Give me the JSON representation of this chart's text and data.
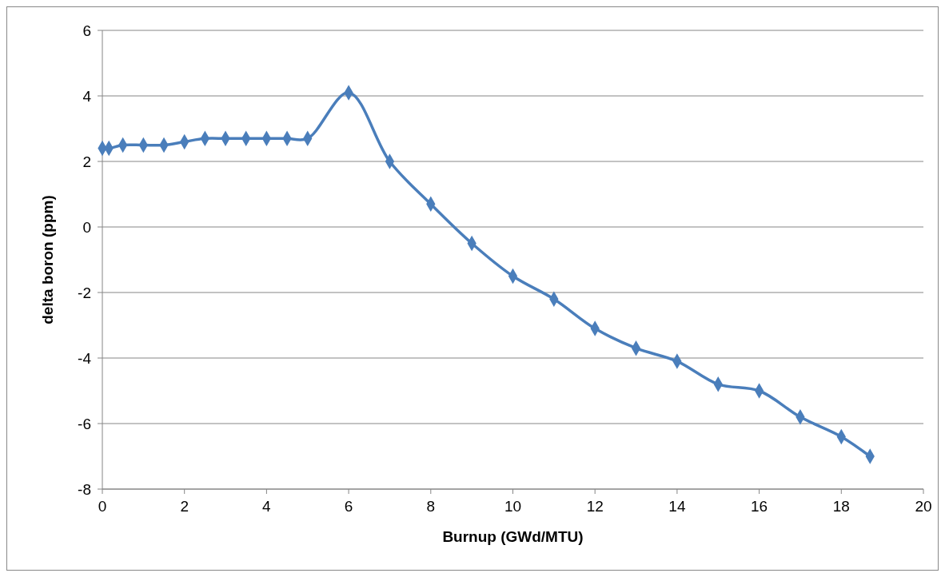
{
  "chart_data": {
    "type": "line",
    "xlabel": "Burnup (GWd/MTU)",
    "ylabel": "delta boron (ppm)",
    "x": [
      0,
      0.16,
      0.5,
      1,
      1.5,
      2,
      2.5,
      3,
      3.5,
      4,
      4.5,
      5,
      6,
      7,
      8,
      9,
      10,
      11,
      12,
      13,
      14,
      15,
      16,
      17,
      18,
      18.7
    ],
    "series": [
      {
        "color": "#4a7ebb",
        "values": [
          2.4,
          2.4,
          2.5,
          2.5,
          2.5,
          2.6,
          2.7,
          2.7,
          2.7,
          2.7,
          2.7,
          2.7,
          4.1,
          2.0,
          0.7,
          -0.5,
          -1.5,
          -2.2,
          -3.1,
          -3.7,
          -4.1,
          -4.8,
          -5.0,
          -5.8,
          -6.4,
          -7.0
        ]
      }
    ],
    "xlim": [
      0,
      20
    ],
    "xticks": [
      0,
      2,
      4,
      6,
      8,
      10,
      12,
      14,
      16,
      18,
      20
    ],
    "ylim": [
      -8,
      6
    ],
    "yticks": [
      -8,
      -6,
      -4,
      -2,
      0,
      2,
      4,
      6
    ],
    "grid": "y",
    "marker": "diamond",
    "line_style": "solid"
  }
}
